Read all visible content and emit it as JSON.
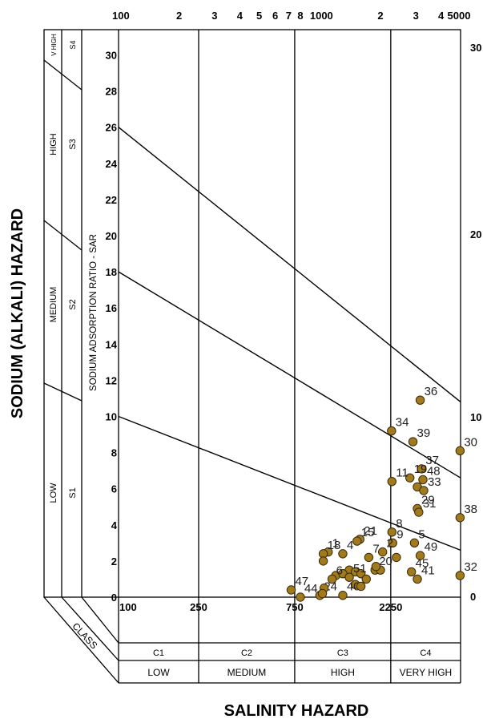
{
  "chart_data": {
    "type": "scatter",
    "title": "",
    "xlabel": "SALINITY HAZARD",
    "ylabel": "SODIUM (ALKALI) HAZARD",
    "inner_ylabel": "SODIUM ADSORPTION RATIO - SAR",
    "x_scale": "log",
    "xlim": [
      100,
      5000
    ],
    "ylim": [
      0,
      30
    ],
    "grid": false,
    "top_ticks": [
      {
        "v": 100,
        "t": "100"
      },
      {
        "v": 200,
        "t": "2"
      },
      {
        "v": 300,
        "t": "3"
      },
      {
        "v": 400,
        "t": "4"
      },
      {
        "v": 500,
        "t": "5"
      },
      {
        "v": 600,
        "t": "6"
      },
      {
        "v": 700,
        "t": "7"
      },
      {
        "v": 800,
        "t": "8"
      },
      {
        "v": 1000,
        "t": "1000"
      },
      {
        "v": 2000,
        "t": "2"
      },
      {
        "v": 3000,
        "t": "3"
      },
      {
        "v": 4000,
        "t": "4"
      },
      {
        "v": 5000,
        "t": "5000"
      }
    ],
    "bottom_ticks": [
      {
        "v": 100,
        "t": "100"
      },
      {
        "v": 250,
        "t": "250"
      },
      {
        "v": 750,
        "t": "750"
      },
      {
        "v": 2250,
        "t": "2250"
      }
    ],
    "left_ticks": [
      "0",
      "2",
      "4",
      "6",
      "8",
      "10",
      "12",
      "14",
      "16",
      "18",
      "20",
      "22",
      "24",
      "26",
      "28",
      "30"
    ],
    "right_ticks": [
      {
        "v": 0,
        "t": "0"
      },
      {
        "v": 10,
        "t": "10"
      },
      {
        "v": 20,
        "t": "20"
      },
      {
        "v": 30,
        "t": "30"
      }
    ],
    "boundary_lines": [
      {
        "from": [
          100,
          26
        ],
        "to": [
          5000,
          10.8
        ]
      },
      {
        "from": [
          100,
          18
        ],
        "to": [
          5000,
          6.6
        ]
      },
      {
        "from": [
          100,
          10
        ],
        "to": [
          5000,
          2.6
        ]
      }
    ],
    "sodium_classes": [
      {
        "code": "S1",
        "name": "LOW"
      },
      {
        "code": "S2",
        "name": "MEDIUM"
      },
      {
        "code": "S3",
        "name": "HIGH"
      },
      {
        "code": "S4",
        "name": "V HIGH"
      }
    ],
    "class_caption": "CLASS",
    "salinity_classes": [
      {
        "code": "C1",
        "name": "LOW"
      },
      {
        "code": "C2",
        "name": "MEDIUM"
      },
      {
        "code": "C3",
        "name": "HIGH"
      },
      {
        "code": "C4",
        "name": "VERY HIGH"
      }
    ],
    "points": [
      {
        "label": "36",
        "x": 3150,
        "y": 10.9
      },
      {
        "label": "34",
        "x": 2270,
        "y": 9.2
      },
      {
        "label": "39",
        "x": 2900,
        "y": 8.6
      },
      {
        "label": "30",
        "x": 4970,
        "y": 8.1
      },
      {
        "label": "37",
        "x": 3200,
        "y": 7.1
      },
      {
        "label": "19",
        "x": 2800,
        "y": 6.6
      },
      {
        "label": "48",
        "x": 3250,
        "y": 6.5
      },
      {
        "label": "11",
        "x": 2280,
        "y": 6.4
      },
      {
        "label": "",
        "x": 3050,
        "y": 6.1
      },
      {
        "label": "33",
        "x": 3280,
        "y": 5.9
      },
      {
        "label": "29",
        "x": 3050,
        "y": 4.9
      },
      {
        "label": "31",
        "x": 3100,
        "y": 4.7
      },
      {
        "label": "38",
        "x": 4970,
        "y": 4.4
      },
      {
        "label": "8",
        "x": 2280,
        "y": 3.6
      },
      {
        "label": "9",
        "x": 2300,
        "y": 3.0
      },
      {
        "label": "5",
        "x": 2950,
        "y": 3.0
      },
      {
        "label": "21",
        "x": 1580,
        "y": 3.2
      },
      {
        "label": "15",
        "x": 1530,
        "y": 3.1
      },
      {
        "label": "2",
        "x": 2050,
        "y": 2.5
      },
      {
        "label": "49",
        "x": 3150,
        "y": 2.3
      },
      {
        "label": "1",
        "x": 1100,
        "y": 2.5
      },
      {
        "label": "18",
        "x": 1040,
        "y": 2.4
      },
      {
        "label": "4",
        "x": 1300,
        "y": 2.4
      },
      {
        "label": "7",
        "x": 1750,
        "y": 2.2
      },
      {
        "label": "",
        "x": 2400,
        "y": 2.2
      },
      {
        "label": "",
        "x": 1040,
        "y": 2.0
      },
      {
        "label": "32",
        "x": 4970,
        "y": 1.2
      },
      {
        "label": "45",
        "x": 2850,
        "y": 1.4
      },
      {
        "label": "41",
        "x": 3050,
        "y": 1.0
      },
      {
        "label": "20",
        "x": 1880,
        "y": 1.5
      },
      {
        "label": "",
        "x": 1400,
        "y": 1.5
      },
      {
        "label": "",
        "x": 1500,
        "y": 1.4
      },
      {
        "label": "",
        "x": 1600,
        "y": 1.3
      },
      {
        "label": "",
        "x": 1200,
        "y": 1.2
      },
      {
        "label": "",
        "x": 1300,
        "y": 1.3
      },
      {
        "label": "51",
        "x": 1400,
        "y": 1.1
      },
      {
        "label": "6",
        "x": 1150,
        "y": 1.0
      },
      {
        "label": "",
        "x": 1500,
        "y": 0.7
      },
      {
        "label": "47",
        "x": 720,
        "y": 0.4
      },
      {
        "label": "44",
        "x": 800,
        "y": 0.0
      },
      {
        "label": "24",
        "x": 1000,
        "y": 0.1
      },
      {
        "label": "",
        "x": 1050,
        "y": 0.5
      },
      {
        "label": "",
        "x": 1030,
        "y": 0.2
      },
      {
        "label": "40",
        "x": 1300,
        "y": 0.1
      },
      {
        "label": "",
        "x": 1600,
        "y": 0.6
      },
      {
        "label": "",
        "x": 1700,
        "y": 1.0
      },
      {
        "label": "",
        "x": 2000,
        "y": 1.5
      },
      {
        "label": "",
        "x": 1900,
        "y": 1.7
      }
    ]
  }
}
